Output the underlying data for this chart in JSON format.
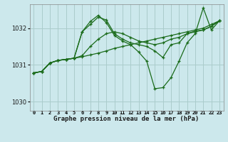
{
  "title": "Graphe pression niveau de la mer (hPa)",
  "bg_color": "#cce8ec",
  "grid_color": "#aacccc",
  "line_color": "#1a6b1a",
  "x_labels": [
    "0",
    "1",
    "2",
    "3",
    "4",
    "5",
    "6",
    "7",
    "8",
    "9",
    "10",
    "11",
    "12",
    "13",
    "14",
    "15",
    "16",
    "17",
    "18",
    "19",
    "20",
    "21",
    "22",
    "23"
  ],
  "ylim": [
    1029.75,
    1032.65
  ],
  "yticks": [
    1030,
    1031,
    1032
  ],
  "series": [
    [
      1030.78,
      1030.82,
      1031.05,
      1031.12,
      1031.15,
      1031.18,
      1031.22,
      1031.27,
      1031.32,
      1031.38,
      1031.45,
      1031.5,
      1031.55,
      1031.6,
      1031.65,
      1031.7,
      1031.75,
      1031.8,
      1031.85,
      1031.9,
      1031.95,
      1032.0,
      1032.1,
      1032.2
    ],
    [
      1030.78,
      1030.82,
      1031.05,
      1031.12,
      1031.15,
      1031.18,
      1031.25,
      1031.5,
      1031.7,
      1031.85,
      1031.9,
      1031.85,
      1031.75,
      1031.65,
      1031.6,
      1031.55,
      1031.6,
      1031.7,
      1031.75,
      1031.85,
      1031.92,
      1031.95,
      1032.05,
      1032.2
    ],
    [
      1030.78,
      1030.82,
      1031.05,
      1031.12,
      1031.15,
      1031.18,
      1031.9,
      1032.1,
      1032.3,
      1032.22,
      1031.85,
      1031.7,
      1031.6,
      1031.55,
      1031.5,
      1031.38,
      1031.2,
      1031.55,
      1031.6,
      1031.85,
      1031.9,
      1031.95,
      1032.05,
      1032.2
    ],
    [
      1030.78,
      1030.82,
      1031.05,
      1031.12,
      1031.15,
      1031.18,
      1031.9,
      1032.18,
      1032.35,
      1032.15,
      1031.8,
      1031.65,
      1031.55,
      1031.35,
      1031.1,
      1030.35,
      1030.38,
      1030.65,
      1031.1,
      1031.6,
      1031.85,
      1032.55,
      1031.95,
      1032.2
    ]
  ]
}
